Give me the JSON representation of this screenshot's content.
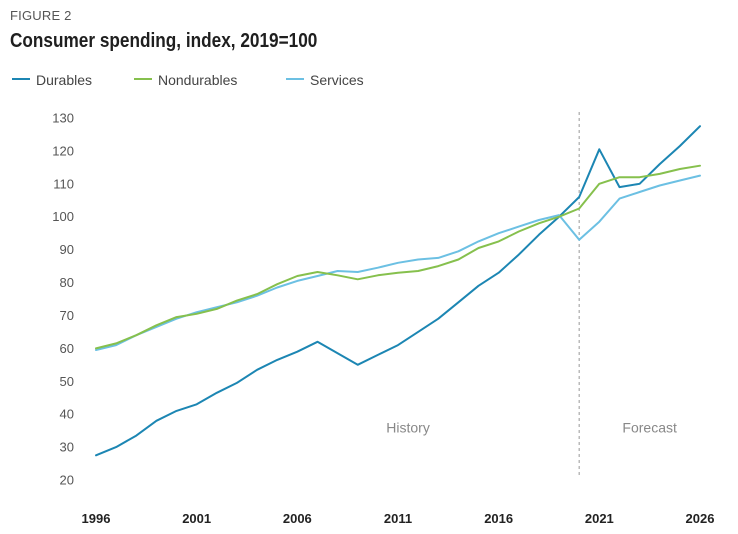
{
  "figure_label": "FIGURE 2",
  "chart_data": {
    "type": "line",
    "title": "Consumer spending, index, 2019=100",
    "xlabel": "",
    "ylabel": "",
    "x": [
      1996,
      1997,
      1998,
      1999,
      2000,
      2001,
      2002,
      2003,
      2004,
      2005,
      2006,
      2007,
      2008,
      2009,
      2010,
      2011,
      2012,
      2013,
      2014,
      2015,
      2016,
      2017,
      2018,
      2019,
      2020,
      2021,
      2022,
      2023,
      2024,
      2025,
      2026
    ],
    "xlim": [
      1996,
      2026
    ],
    "ylim": [
      20,
      130
    ],
    "yticks": [
      130,
      120,
      110,
      100,
      90,
      80,
      70,
      60,
      50,
      40,
      30,
      20
    ],
    "xticks": [
      1996,
      2001,
      2006,
      2011,
      2016,
      2021,
      2026
    ],
    "grid": false,
    "legend_position": "top-left",
    "series": [
      {
        "name": "Durables",
        "color": "#1c86b3",
        "values": [
          27.5,
          30,
          33.5,
          38,
          41,
          43,
          46.5,
          49.5,
          53.5,
          56.5,
          59,
          62,
          58.5,
          55,
          58,
          61,
          65,
          69,
          74,
          79,
          83,
          88.5,
          94.5,
          100,
          106,
          120.5,
          109,
          110,
          116,
          121.5,
          127.5
        ]
      },
      {
        "name": "Nondurables",
        "color": "#86c04d",
        "values": [
          60,
          61.5,
          64,
          67,
          69.5,
          70.5,
          72,
          74.5,
          76.5,
          79.5,
          82,
          83.2,
          82.2,
          81,
          82.2,
          83,
          83.5,
          85,
          87,
          90.5,
          92.5,
          95.5,
          98,
          100,
          102.5,
          110,
          112,
          112,
          113,
          114.5,
          115.5
        ]
      },
      {
        "name": "Services",
        "color": "#6cc0e3",
        "values": [
          59.5,
          61,
          64,
          66.5,
          69,
          71,
          72.5,
          74,
          76,
          78.5,
          80.5,
          82,
          83.5,
          83.2,
          84.5,
          86,
          87,
          87.5,
          89.5,
          92.5,
          95,
          97,
          99,
          100.5,
          93,
          98.5,
          105.5,
          107.5,
          109.5,
          111,
          112.5
        ]
      }
    ],
    "divider_x": 2020,
    "annotations": [
      {
        "text": "History",
        "x": 2011.5,
        "y": 36
      },
      {
        "text": "Forecast",
        "x": 2023.5,
        "y": 36
      }
    ]
  }
}
